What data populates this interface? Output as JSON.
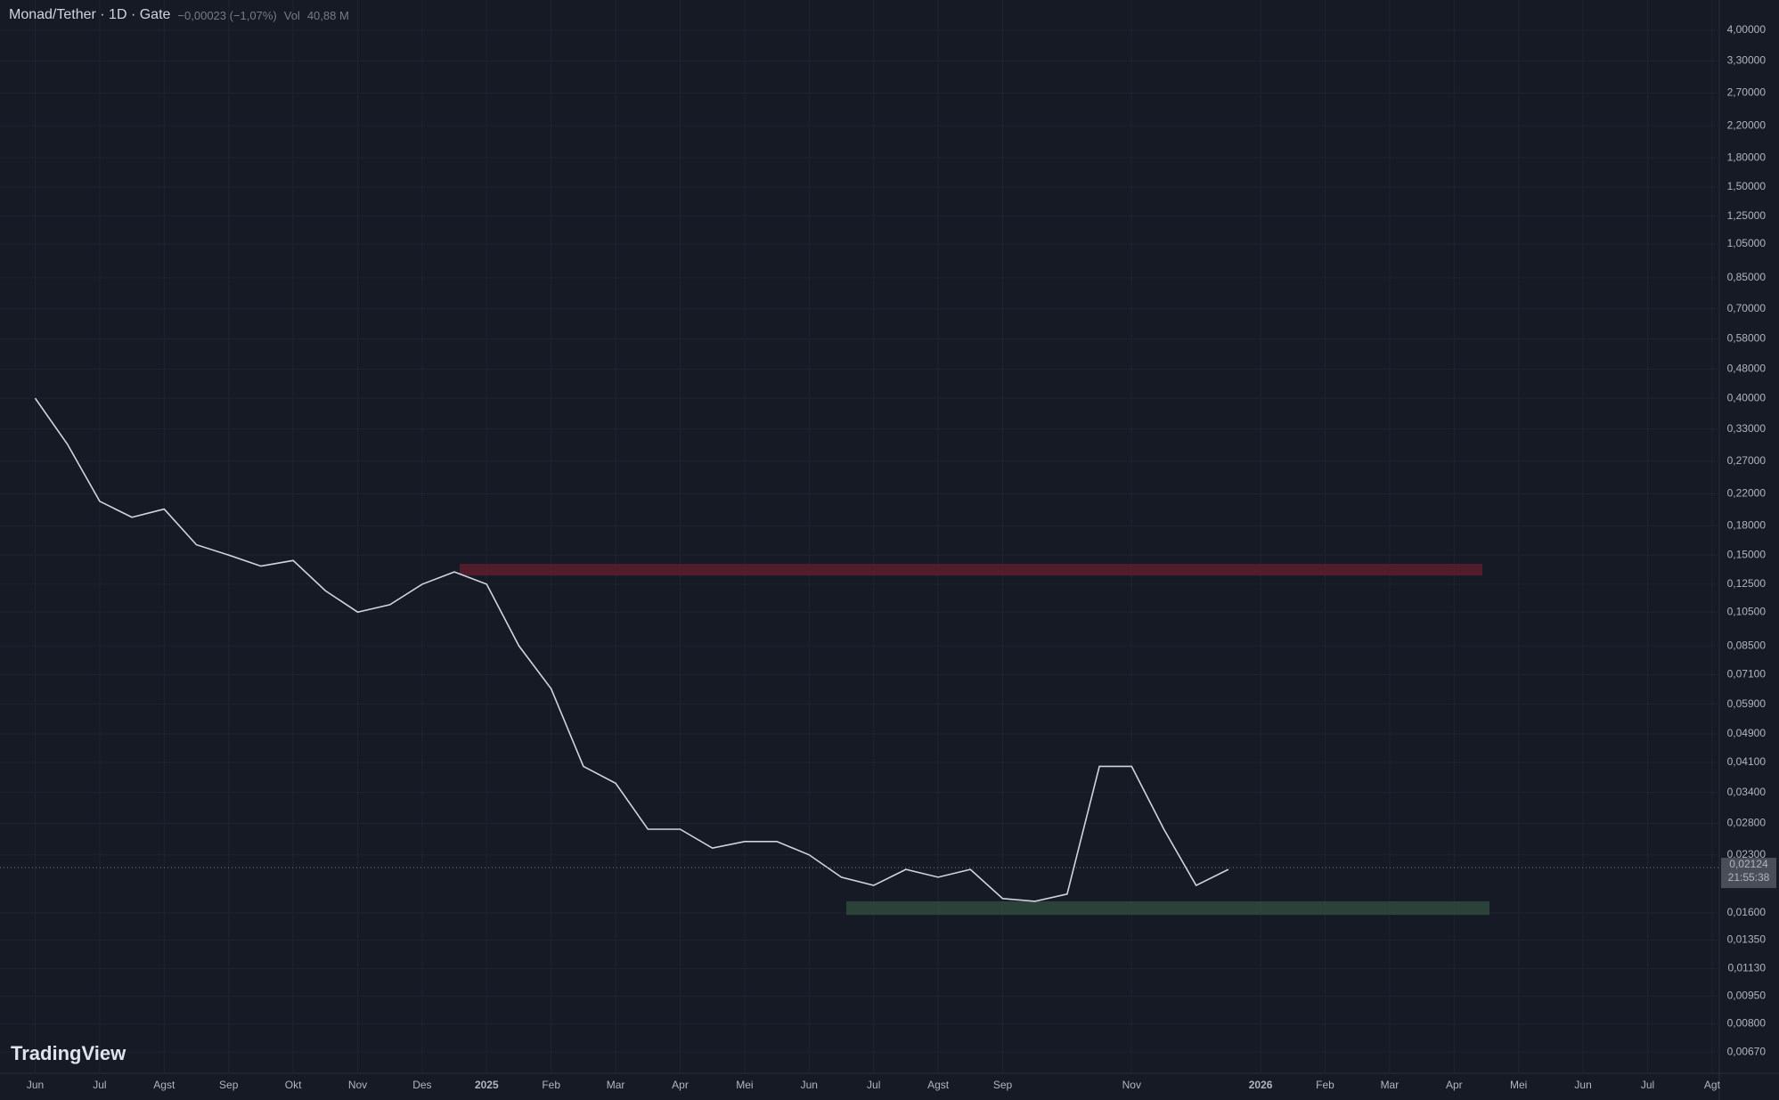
{
  "header": {
    "title": "Monad/Tether · 1D · Gate",
    "change": "−0,00023 (−1,07%)",
    "vol_label": "Vol",
    "vol_value": "40,88 M"
  },
  "logo": "TradingView",
  "chart_data": {
    "type": "line",
    "log": true,
    "grid": true,
    "categories": [
      "Jun",
      null,
      "Jul",
      null,
      "Agst",
      null,
      "Sep",
      null,
      "Okt",
      null,
      "Nov",
      null,
      "Des",
      null,
      "2025",
      null,
      "Feb",
      null,
      "Mar",
      null,
      "Apr",
      null,
      "Mei",
      null,
      "Jun",
      null,
      "Jul",
      null,
      "Agst",
      null,
      "Sep",
      null,
      null,
      null,
      "Nov",
      null,
      null,
      null,
      "2026",
      null,
      "Feb",
      null,
      "Mar",
      null,
      "Apr",
      null,
      "Mei",
      null,
      "Jun",
      null,
      "Jul",
      null,
      "Agt"
    ],
    "series": [
      {
        "name": "Monad/Tether",
        "color": "#d1d4dc",
        "values": [
          0.4,
          0.3,
          0.21,
          0.19,
          0.2,
          0.16,
          0.15,
          0.14,
          0.145,
          0.12,
          0.105,
          0.11,
          0.125,
          0.135,
          0.125,
          0.085,
          0.065,
          0.04,
          0.036,
          0.027,
          0.027,
          0.024,
          0.025,
          0.025,
          0.023,
          0.02,
          0.019,
          0.021,
          0.02,
          0.021,
          0.0175,
          0.0172,
          0.018,
          0.04,
          0.04,
          0.027,
          0.019,
          0.021,
          null,
          null,
          null,
          null,
          null,
          null,
          null,
          null,
          null,
          null,
          null,
          null,
          null,
          null,
          null
        ]
      }
    ],
    "ylim": [
      0.0061,
      4.83
    ],
    "yticks": [
      {
        "value": 4,
        "label": "4,00000"
      },
      {
        "value": 3.3,
        "label": "3,30000"
      },
      {
        "value": 2.7,
        "label": "2,70000"
      },
      {
        "value": 2.2,
        "label": "2,20000"
      },
      {
        "value": 1.8,
        "label": "1,80000"
      },
      {
        "value": 1.5,
        "label": "1,50000"
      },
      {
        "value": 1.25,
        "label": "1,25000"
      },
      {
        "value": 1.05,
        "label": "1,05000"
      },
      {
        "value": 0.85,
        "label": "0,85000"
      },
      {
        "value": 0.7,
        "label": "0,70000"
      },
      {
        "value": 0.58,
        "label": "0,58000"
      },
      {
        "value": 0.48,
        "label": "0,48000"
      },
      {
        "value": 0.4,
        "label": "0,40000"
      },
      {
        "value": 0.33,
        "label": "0,33000"
      },
      {
        "value": 0.27,
        "label": "0,27000"
      },
      {
        "value": 0.22,
        "label": "0,22000"
      },
      {
        "value": 0.18,
        "label": "0,18000"
      },
      {
        "value": 0.15,
        "label": "0,15000"
      },
      {
        "value": 0.125,
        "label": "0,12500"
      },
      {
        "value": 0.105,
        "label": "0,10500"
      },
      {
        "value": 0.085,
        "label": "0,08500"
      },
      {
        "value": 0.071,
        "label": "0,07100"
      },
      {
        "value": 0.059,
        "label": "0,05900"
      },
      {
        "value": 0.049,
        "label": "0,04900"
      },
      {
        "value": 0.041,
        "label": "0,04100"
      },
      {
        "value": 0.034,
        "label": "0,03400"
      },
      {
        "value": 0.028,
        "label": "0,02800"
      },
      {
        "value": 0.023,
        "label": "0,02300"
      },
      {
        "value": 0.016,
        "label": "0,01600"
      },
      {
        "value": 0.0135,
        "label": "0,01350"
      },
      {
        "value": 0.0113,
        "label": "0,01130"
      },
      {
        "value": 0.0095,
        "label": "0,00950"
      },
      {
        "value": 0.008,
        "label": "0,00800"
      },
      {
        "value": 0.0067,
        "label": "0,00670"
      }
    ],
    "last_price": {
      "value": 0.02124,
      "label": "0,02124"
    },
    "countdown": "21:55:38",
    "zones": [
      {
        "low": 0.132,
        "high": 0.142,
        "color": "#5c1f2b"
      },
      {
        "low": 0.0158,
        "high": 0.0172,
        "color": "#2f4a3c"
      }
    ]
  }
}
